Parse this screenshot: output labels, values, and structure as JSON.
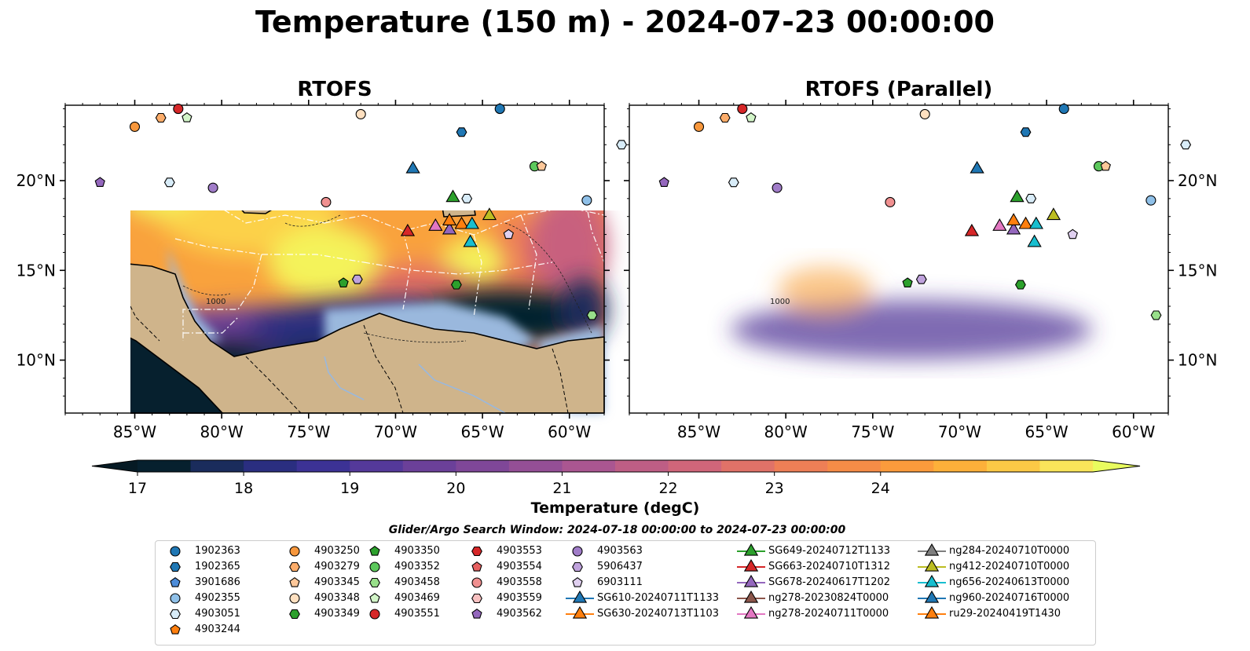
{
  "title": "Temperature (150 m) - 2024-07-23 00:00:00",
  "panels": [
    {
      "title": "RTOFS"
    },
    {
      "title": "RTOFS (Parallel)"
    }
  ],
  "map": {
    "lon_ticks": [
      "85°W",
      "80°W",
      "75°W",
      "70°W",
      "65°W",
      "60°W"
    ],
    "lat_ticks": [
      "20°N",
      "15°N",
      "10°N"
    ],
    "contour_labels": [
      "1000",
      "1000"
    ]
  },
  "colorbar": {
    "label": "Temperature (degC)",
    "ticks": [
      "17",
      "18",
      "19",
      "20",
      "21",
      "22",
      "23",
      "24"
    ],
    "colors": [
      "#06202e",
      "#1a2c5c",
      "#2a2e80",
      "#3c3295",
      "#54399a",
      "#6b4099",
      "#7f4798",
      "#944f96",
      "#aa5691",
      "#be5e85",
      "#d0667a",
      "#e07268",
      "#ee7f56",
      "#f68c47",
      "#fb9b3c",
      "#fdb03a",
      "#fcc946",
      "#f9e55a"
    ],
    "extend_low_color": "#061a24",
    "extend_high_color": "#e9fc5e"
  },
  "search_window": "Glider/Argo Search Window: 2024-07-18 00:00:00 to 2024-07-23 00:00:00",
  "legend": {
    "columns": [
      [
        {
          "label": "1902363",
          "marker": "circle",
          "color": "#1f77b4"
        },
        {
          "label": "1902365",
          "marker": "hexagon",
          "color": "#1f77b4"
        },
        {
          "label": "3901686",
          "marker": "pentagon",
          "color": "#4c8cd9"
        },
        {
          "label": "4902355",
          "marker": "circle",
          "color": "#8fc0e8"
        },
        {
          "label": "4903051",
          "marker": "hexagon",
          "color": "#d8ecf8"
        },
        {
          "label": "4903244",
          "marker": "pentagon",
          "color": "#ff7f0e"
        }
      ],
      [
        {
          "label": "4903250",
          "marker": "circle",
          "color": "#f7973c"
        },
        {
          "label": "4903279",
          "marker": "hexagon",
          "color": "#fbac6a"
        },
        {
          "label": "4903345",
          "marker": "pentagon",
          "color": "#fdc799"
        },
        {
          "label": "4903348",
          "marker": "circle",
          "color": "#ffe0c0"
        },
        {
          "label": "4903349",
          "marker": "hexagon",
          "color": "#2ca02c"
        }
      ],
      [
        {
          "label": "4903350",
          "marker": "pentagon",
          "color": "#2ca02c"
        },
        {
          "label": "4903352",
          "marker": "circle",
          "color": "#5cc85c"
        },
        {
          "label": "4903458",
          "marker": "hexagon",
          "color": "#98df8a"
        },
        {
          "label": "4903469",
          "marker": "pentagon",
          "color": "#d2f5c8"
        },
        {
          "label": "4903551",
          "marker": "circle",
          "color": "#d62728"
        }
      ],
      [
        {
          "label": "4903553",
          "marker": "hexagon",
          "color": "#d62728"
        },
        {
          "label": "4903554",
          "marker": "pentagon",
          "color": "#e66060"
        },
        {
          "label": "4903558",
          "marker": "circle",
          "color": "#f09090"
        },
        {
          "label": "4903559",
          "marker": "hexagon",
          "color": "#f8c0c0"
        },
        {
          "label": "4903562",
          "marker": "pentagon",
          "color": "#9467bd"
        }
      ],
      [
        {
          "label": "4903563",
          "marker": "circle",
          "color": "#a07cc8"
        },
        {
          "label": "5906437",
          "marker": "hexagon",
          "color": "#bfa2dc"
        },
        {
          "label": "6903111",
          "marker": "pentagon",
          "color": "#e0d0f0"
        },
        {
          "label": "SG610-20240711T1133",
          "marker": "triangle",
          "color": "#1f77b4"
        },
        {
          "label": "SG630-20240713T1103",
          "marker": "triangle",
          "color": "#ff7f0e"
        }
      ],
      [
        {
          "label": "SG649-20240712T1133",
          "marker": "triangle",
          "color": "#2ca02c"
        },
        {
          "label": "SG663-20240710T1312",
          "marker": "triangle",
          "color": "#d62728"
        },
        {
          "label": "SG678-20240617T1202",
          "marker": "triangle",
          "color": "#9467bd"
        },
        {
          "label": "ng278-20230824T0000",
          "marker": "triangle",
          "color": "#8c564b"
        },
        {
          "label": "ng278-20240711T0000",
          "marker": "triangle",
          "color": "#e377c2"
        }
      ],
      [
        {
          "label": "ng284-20240710T0000",
          "marker": "triangle",
          "color": "#7f7f7f"
        },
        {
          "label": "ng412-20240710T0000",
          "marker": "triangle",
          "color": "#bcbd22"
        },
        {
          "label": "ng656-20240613T0000",
          "marker": "triangle",
          "color": "#17becf"
        },
        {
          "label": "ng960-20240716T0000",
          "marker": "triangle",
          "color": "#1f77b4"
        },
        {
          "label": "ru29-20240419T1430",
          "marker": "triangle",
          "color": "#ff7f0e"
        }
      ]
    ]
  },
  "markers": [
    {
      "lon": -85.0,
      "lat": 23.0,
      "marker": "circle",
      "color": "#f7973c"
    },
    {
      "lon": -83.5,
      "lat": 23.5,
      "marker": "hexagon",
      "color": "#fbac6a"
    },
    {
      "lon": -82.5,
      "lat": 24.0,
      "marker": "circle",
      "color": "#d62728"
    },
    {
      "lon": -82.0,
      "lat": 23.5,
      "marker": "pentagon",
      "color": "#d2f5c8"
    },
    {
      "lon": -72.0,
      "lat": 23.7,
      "marker": "circle",
      "color": "#ffe0c0"
    },
    {
      "lon": -64.0,
      "lat": 24.0,
      "marker": "circle",
      "color": "#1f77b4"
    },
    {
      "lon": -66.2,
      "lat": 22.7,
      "marker": "hexagon",
      "color": "#1f77b4"
    },
    {
      "lon": -57.0,
      "lat": 22.0,
      "marker": "hexagon",
      "color": "#d8ecf8"
    },
    {
      "lon": -87.0,
      "lat": 19.9,
      "marker": "pentagon",
      "color": "#9467bd"
    },
    {
      "lon": -83.0,
      "lat": 19.9,
      "marker": "hexagon",
      "color": "#d8ecf8"
    },
    {
      "lon": -80.5,
      "lat": 19.6,
      "marker": "circle",
      "color": "#a07cc8"
    },
    {
      "lon": -62.0,
      "lat": 20.8,
      "marker": "circle",
      "color": "#5cc85c"
    },
    {
      "lon": -61.6,
      "lat": 20.8,
      "marker": "pentagon",
      "color": "#fdc799"
    },
    {
      "lon": -59.0,
      "lat": 18.9,
      "marker": "circle",
      "color": "#8fc0e8"
    },
    {
      "lon": -74.0,
      "lat": 18.8,
      "marker": "circle",
      "color": "#f09090"
    },
    {
      "lon": -63.5,
      "lat": 17.0,
      "marker": "pentagon",
      "color": "#e0d0f0"
    },
    {
      "lon": -73.0,
      "lat": 14.3,
      "marker": "pentagon",
      "color": "#2ca02c"
    },
    {
      "lon": -72.2,
      "lat": 14.5,
      "marker": "hexagon",
      "color": "#bfa2dc"
    },
    {
      "lon": -66.5,
      "lat": 14.2,
      "marker": "hexagon",
      "color": "#2ca02c"
    },
    {
      "lon": -58.7,
      "lat": 12.5,
      "marker": "hexagon",
      "color": "#98df8a"
    },
    {
      "lon": -69.0,
      "lat": 20.7,
      "marker": "triangle",
      "color": "#1f77b4"
    },
    {
      "lon": -66.7,
      "lat": 19.1,
      "marker": "triangle",
      "color": "#2ca02c"
    },
    {
      "lon": -65.9,
      "lat": 19.0,
      "marker": "hexagon",
      "color": "#d8ecf8"
    },
    {
      "lon": -69.3,
      "lat": 17.2,
      "marker": "triangle",
      "color": "#d62728"
    },
    {
      "lon": -67.7,
      "lat": 17.5,
      "marker": "triangle",
      "color": "#e377c2"
    },
    {
      "lon": -66.9,
      "lat": 17.3,
      "marker": "triangle",
      "color": "#9467bd"
    },
    {
      "lon": -66.9,
      "lat": 17.8,
      "marker": "triangle",
      "color": "#ff7f0e"
    },
    {
      "lon": -66.2,
      "lat": 17.6,
      "marker": "triangle",
      "color": "#ff7f0e"
    },
    {
      "lon": -65.6,
      "lat": 17.6,
      "marker": "triangle",
      "color": "#17becf"
    },
    {
      "lon": -65.7,
      "lat": 16.6,
      "marker": "triangle",
      "color": "#17becf"
    },
    {
      "lon": -64.6,
      "lat": 18.1,
      "marker": "triangle",
      "color": "#bcbd22"
    }
  ]
}
